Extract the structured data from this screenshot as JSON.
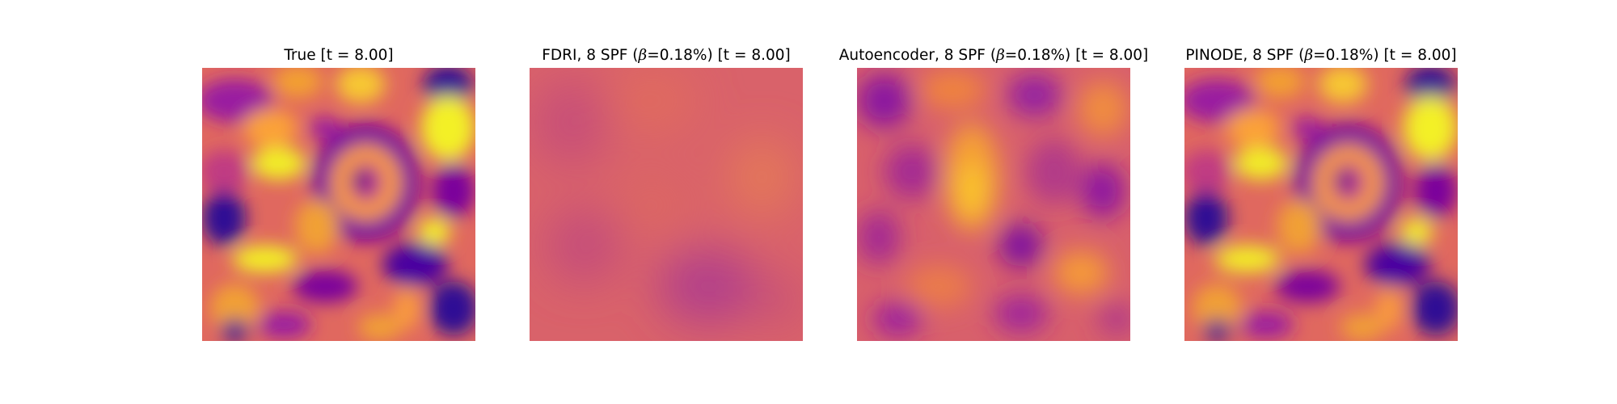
{
  "panels": [
    {
      "title_prefix": "True [t = 8.00]",
      "beta_symbol": "",
      "title_suffix": ""
    },
    {
      "title_prefix": "FDRI, 8 SPF (",
      "beta_symbol": "β",
      "title_suffix": "=0.18%) [t = 8.00]"
    },
    {
      "title_prefix": "Autoencoder, 8 SPF (",
      "beta_symbol": "β",
      "title_suffix": "=0.18%) [t = 8.00]"
    },
    {
      "title_prefix": "PINODE, 8 SPF (",
      "beta_symbol": "β",
      "title_suffix": "=0.18%) [t = 8.00]"
    }
  ],
  "colormap": "plasma"
}
